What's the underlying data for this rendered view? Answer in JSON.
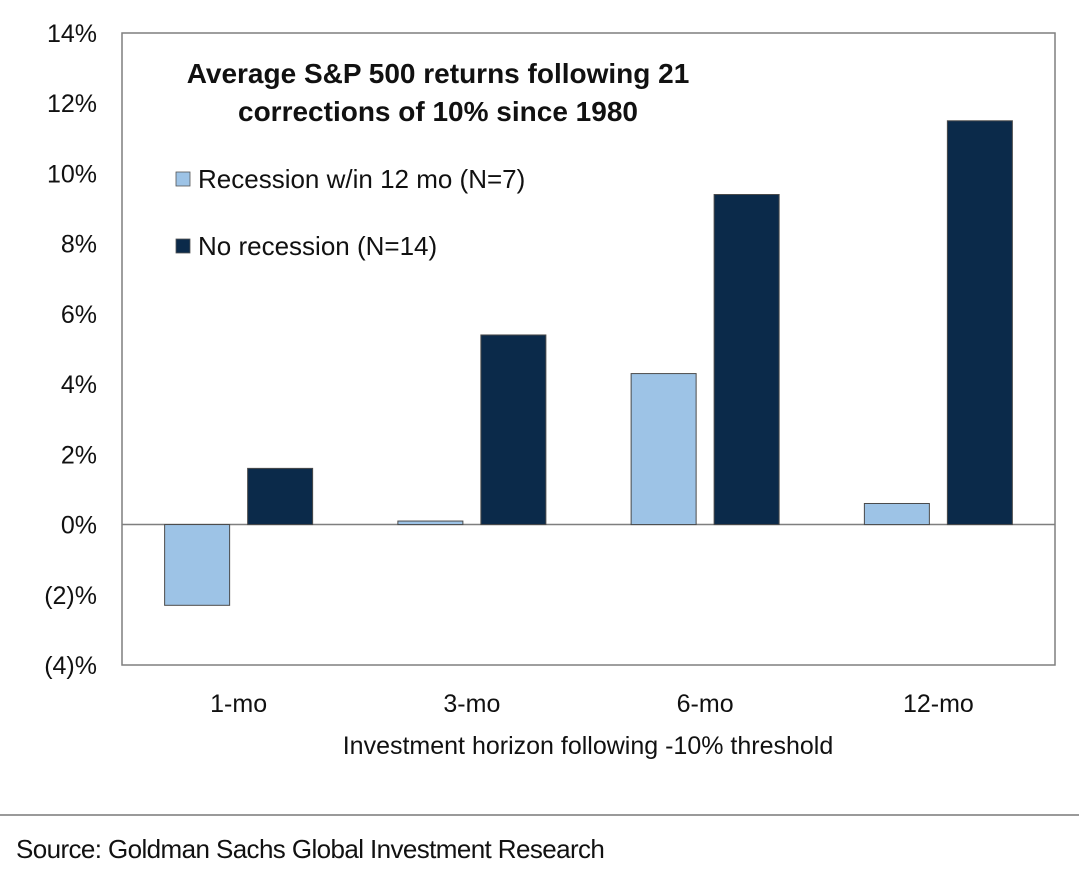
{
  "chart_data": {
    "type": "bar",
    "title_lines": [
      "Average S&P 500 returns following 21",
      "corrections of 10% since 1980"
    ],
    "xlabel": "Investment horizon following -10% threshold",
    "ylabel": "",
    "categories": [
      "1-mo",
      "3-mo",
      "6-mo",
      "12-mo"
    ],
    "y_ticks": [
      14,
      12,
      10,
      8,
      6,
      4,
      2,
      0,
      -2,
      -4
    ],
    "y_tick_labels": [
      "14%",
      "12%",
      "10%",
      "8%",
      "6%",
      "4%",
      "2%",
      "0%",
      "(2)%",
      "(4)%"
    ],
    "ylim": [
      -4,
      14
    ],
    "grid": false,
    "legend_position": "top-left",
    "series": [
      {
        "name": "Recession w/in 12 mo (N=7)",
        "values": [
          -2.3,
          0.1,
          4.3,
          0.6
        ],
        "color": "#9dc3e6"
      },
      {
        "name": "No recession (N=14)",
        "values": [
          1.6,
          5.4,
          9.4,
          11.5
        ],
        "color": "#0b2a4a"
      }
    ]
  },
  "source_text": "Source: Goldman Sachs Global Investment Research"
}
